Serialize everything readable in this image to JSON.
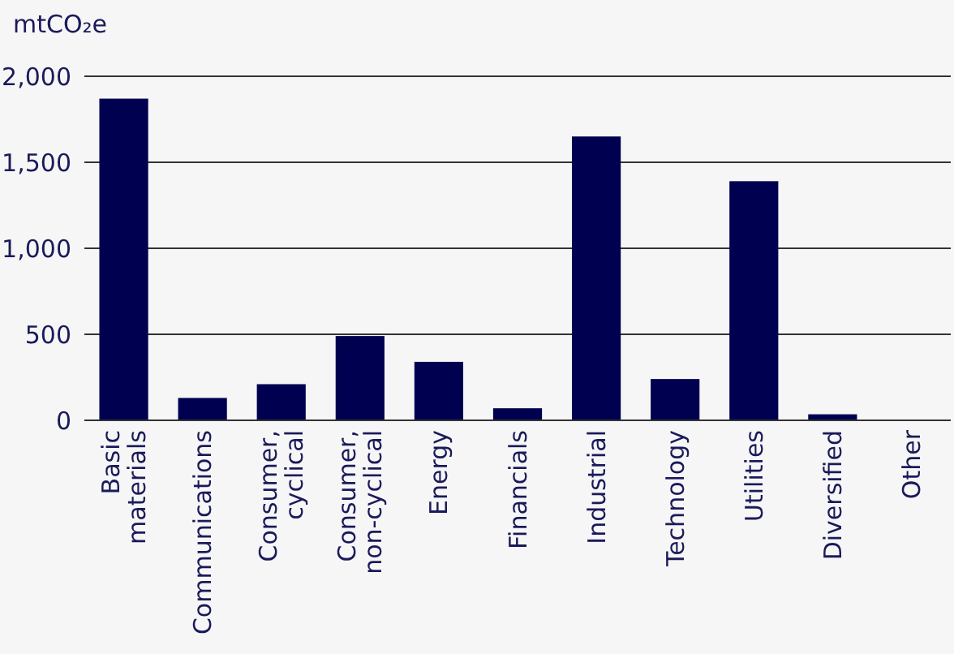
{
  "chart_data": {
    "type": "bar",
    "ylabel": "mtCO₂e",
    "categories": [
      "Basic materials",
      "Communications",
      "Consumer, cyclical",
      "Consumer, non-cyclical",
      "Energy",
      "Financials",
      "Industrial",
      "Technology",
      "Utilities",
      "Diversified",
      "Other"
    ],
    "values": [
      1870,
      130,
      210,
      490,
      340,
      70,
      1650,
      240,
      1390,
      35,
      3
    ],
    "color": "#000050",
    "ylim": [
      0,
      2000
    ],
    "yticks": [
      {
        "value": 0,
        "label": "0"
      },
      {
        "value": 500,
        "label": "500"
      },
      {
        "value": 1000,
        "label": "1,000"
      },
      {
        "value": 1500,
        "label": "1,500"
      },
      {
        "value": 2000,
        "label": "2,000"
      }
    ],
    "grid": "y"
  }
}
